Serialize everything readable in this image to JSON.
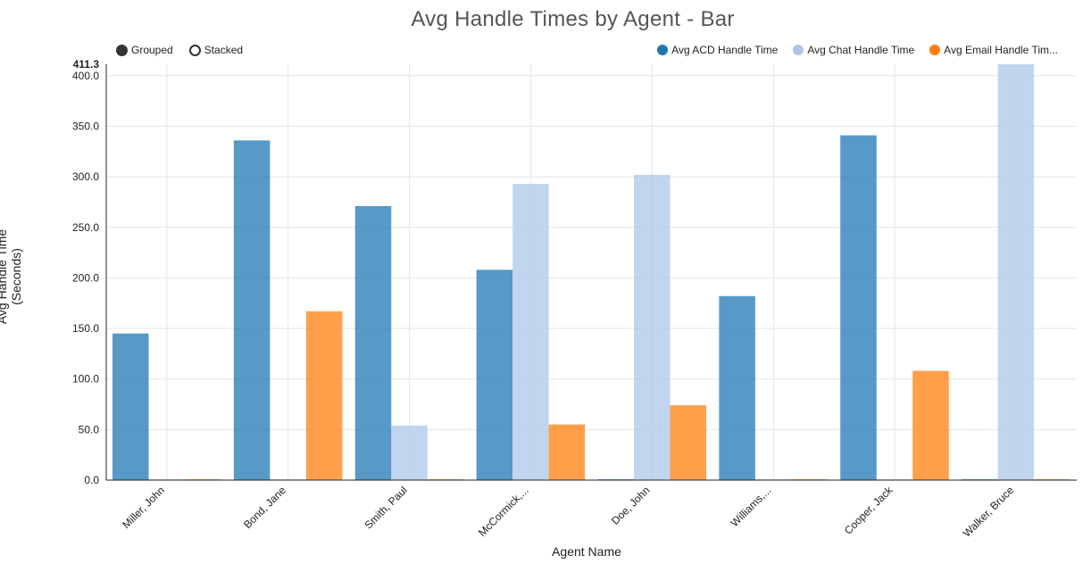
{
  "title": "Avg Handle Times by Agent - Bar",
  "controls": [
    {
      "label": "Grouped",
      "selected": true
    },
    {
      "label": "Stacked",
      "selected": false
    }
  ],
  "legend": [
    {
      "label": "Avg ACD Handle Time",
      "color": "#1f77b4"
    },
    {
      "label": "Avg Chat Handle Time",
      "color": "#aec7e8"
    },
    {
      "label": "Avg Email Handle Tim...",
      "color": "#ff7f0e"
    }
  ],
  "chart_data": {
    "type": "bar",
    "mode": "grouped",
    "title": "Avg Handle Times by Agent - Bar",
    "xlabel": "Agent Name",
    "ylabel": "Avg Handle Time (Seconds)",
    "ylim": [
      0,
      411.3
    ],
    "y_max_label": "411.3",
    "yticks": [
      "0.0",
      "50.0",
      "100.0",
      "150.0",
      "200.0",
      "250.0",
      "300.0",
      "350.0",
      "400.0"
    ],
    "categories": [
      "Miller, John",
      "Bond, Jane",
      "Smith, Paul",
      "McCormick,...",
      "Doe, John",
      "Williams,...",
      "Cooper, Jack",
      "Walker, Bruce"
    ],
    "series": [
      {
        "name": "Avg ACD Handle Time",
        "color": "#1f77b4",
        "values": [
          145,
          336,
          271,
          208,
          0,
          182,
          341,
          0
        ]
      },
      {
        "name": "Avg Chat Handle Time",
        "color": "#aec7e8",
        "values": [
          0,
          0,
          54,
          293,
          302,
          0,
          0,
          411.3
        ]
      },
      {
        "name": "Avg Email Handle Time",
        "color": "#ff7f0e",
        "values": [
          0,
          167,
          0,
          55,
          74,
          0,
          108,
          0
        ]
      }
    ],
    "grid": true,
    "legend_position": "top-right"
  }
}
